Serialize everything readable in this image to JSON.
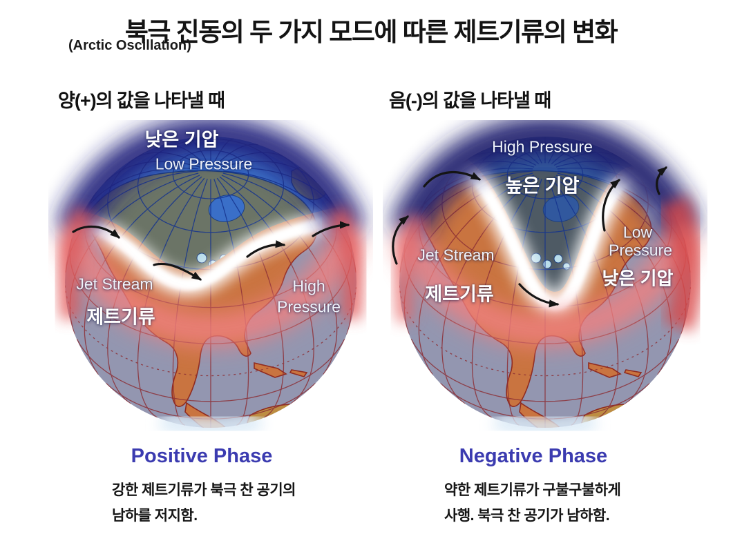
{
  "page_title": {
    "main": "북극 진동의 두 가지 모드에 따른 제트기류의 변화",
    "sub": "(Arctic Oscillation)"
  },
  "panels": [
    {
      "header": "양(+)의 값을 나타낼 때",
      "labels": {
        "pressure_top_kr": "낮은 기압",
        "pressure_top_en": "Low Pressure",
        "jet_en": "Jet Stream",
        "jet_kr": "제트기류",
        "pressure_side_en1": "High",
        "pressure_side_en2": "Pressure"
      },
      "phase": "Positive Phase",
      "desc1": "강한 제트기류가 북극 찬 공기의",
      "desc2": "남하를 저지함."
    },
    {
      "header": "음(-)의 값을 나타낼 때",
      "labels": {
        "pressure_top_en": "High Pressure",
        "pressure_top_kr": "높은 기압",
        "jet_en": "Jet Stream",
        "jet_kr": "제트기류",
        "pressure_side_en1": "Low",
        "pressure_side_en2": "Pressure",
        "pressure_side_kr": "낮은 기압"
      },
      "phase": "Negative Phase",
      "desc1": "약한 제트기류가 구불구불하게",
      "desc2": "사행. 북극 찬 공기가 남하함."
    }
  ],
  "colors": {
    "title_text": "#141414",
    "phase_label": "#3b3bb0",
    "halo_polar": "#23237c",
    "halo_polar_negative": "#202070",
    "halo_warm": "#ef8080",
    "halo_warm_strong": "#d94848",
    "halo_bottom_glow": "#dcebf7",
    "ocean_north_positive": "#3a6fc8",
    "ocean_north_negative": "#31589e",
    "ocean_south": "#9396b0",
    "land_north_positive": "#6b7466",
    "land_north_negative": "#4e5a64",
    "land_south": "#c97440",
    "land_south_america": "#bd8d42",
    "land_outline_south": "#8f2b20",
    "land_outline_north": "#1e3f7d",
    "grid_north": "#16348e",
    "grid_south": "#8c2f36",
    "jet_band": "#ffffff",
    "arrow": "#151515",
    "lakes": "#b8dcea"
  }
}
